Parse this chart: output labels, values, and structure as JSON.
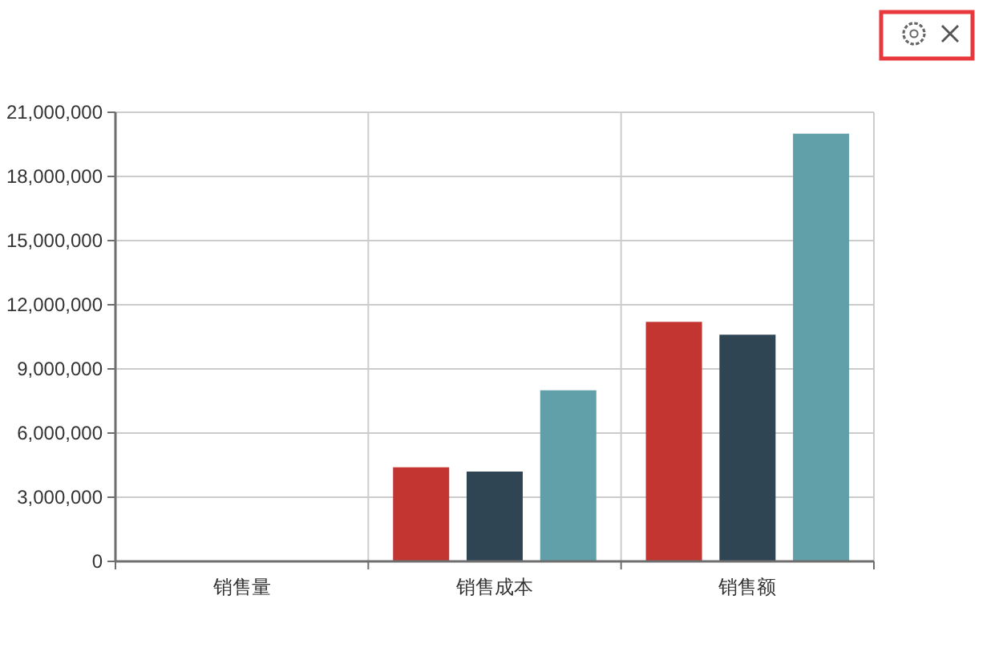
{
  "chart_data": {
    "type": "bar",
    "categories": [
      "销售量",
      "销售成本",
      "销售额"
    ],
    "series": [
      {
        "color": "#c23531",
        "values": [
          0,
          4400000,
          11200000
        ]
      },
      {
        "color": "#2f4554",
        "values": [
          0,
          4200000,
          10600000
        ]
      },
      {
        "color": "#61a0a8",
        "values": [
          0,
          8000000,
          20000000
        ]
      }
    ],
    "ylim": [
      0,
      21000000
    ],
    "yticks": [
      0,
      {
        "value": 3000000,
        "label": "3,000,000"
      },
      {
        "value": 6000000,
        "label": "6,000,000"
      },
      {
        "value": 9000000,
        "label": "9,000,000"
      },
      {
        "value": 12000000,
        "label": "12,000,000"
      },
      {
        "value": 15000000,
        "label": "15,000,000"
      },
      {
        "value": 18000000,
        "label": "18,000,000"
      },
      {
        "value": 21000000,
        "label": "21,000,000"
      }
    ],
    "grid": true
  }
}
